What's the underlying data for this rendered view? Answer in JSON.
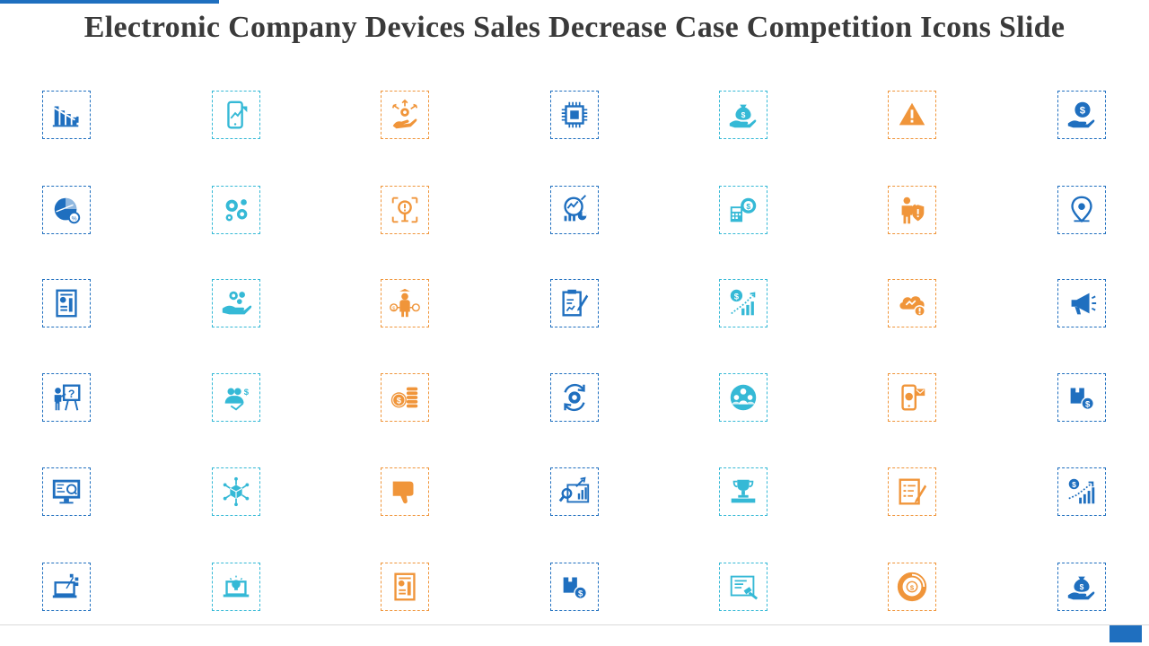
{
  "slide": {
    "title": "Electronic Company Devices Sales Decrease Case Competition Icons Slide"
  },
  "colors": {
    "dark_blue": "#1f6fbf",
    "teal": "#35b9d6",
    "orange": "#f0953a",
    "title_text": "#3a3a3a"
  },
  "icon_columns": [
    {
      "color": "dark_blue",
      "icons": [
        "declining-bar-chart-icon",
        "piggy-pie-chart-icon",
        "report-document-icon",
        "presenter-question-board-icon",
        "monitor-network-analysis-icon",
        "laptop-network-icon"
      ]
    },
    {
      "color": "teal",
      "icons": [
        "smartphone-growth-icon",
        "gears-icon",
        "hand-gear-icon",
        "team-dollar-icon",
        "cube-network-icon",
        "idea-laptop-icon"
      ]
    },
    {
      "color": "orange",
      "icons": [
        "hand-arrows-gear-icon",
        "target-alert-icon",
        "person-dollar-options-icon",
        "coins-stack-icon",
        "thumbs-down-icon",
        "report-chart-icon"
      ]
    },
    {
      "color": "dark_blue",
      "icons": [
        "cpu-chip-icon",
        "magnifier-chart-icon",
        "clipboard-pen-icon",
        "gear-refresh-icon",
        "search-growth-chart-icon",
        "box-dollar-icon"
      ]
    },
    {
      "color": "teal",
      "icons": [
        "hand-money-bag-icon",
        "calculator-gear-icon",
        "dollar-growth-chart-icon",
        "community-circle-icon",
        "trophy-podium-icon",
        "certificate-gavel-icon"
      ]
    },
    {
      "color": "orange",
      "icons": [
        "warning-triangle-icon",
        "businessman-shield-icon",
        "cloud-warning-icon",
        "mobile-message-icon",
        "checklist-pen-icon",
        "dollar-donut-chart-icon"
      ]
    },
    {
      "color": "dark_blue",
      "icons": [
        "hand-dollar-icon",
        "location-pin-icon",
        "megaphone-icon",
        "box-dollar-icon",
        "dollar-bar-growth-icon",
        "hand-money-bag-icon"
      ]
    }
  ]
}
